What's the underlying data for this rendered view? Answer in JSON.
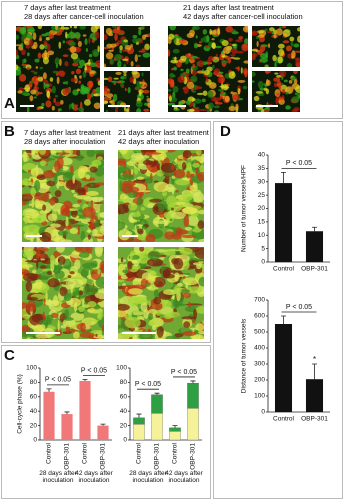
{
  "panels": {
    "A": {
      "label": "A",
      "left_line1": "7 days after last treatment",
      "left_line2": "28 days after cancer-cell inoculation",
      "right_line1": "21 days after last treatment",
      "right_line2": "42 days after cancer-cell inoculation"
    },
    "B": {
      "label": "B",
      "left_line1": "7 days after last treatment",
      "left_line2": "28 days after inoculation",
      "right_line1": "21 days after last treatment",
      "right_line2": "42 days after inoculation"
    },
    "C": {
      "label": "C"
    },
    "D": {
      "label": "D"
    }
  },
  "chart_data": [
    {
      "type": "bar",
      "ylabel": "Cell-cycle phase (%)",
      "categories": [
        "Control",
        "OBP-301",
        "Control",
        "OBP-301"
      ],
      "groups": [
        "28 days after inoculation",
        "42 days after inoculation"
      ],
      "values": [
        67,
        36,
        82,
        20
      ],
      "errors": [
        4,
        3,
        2,
        2
      ],
      "color": "#f07878",
      "ylim": [
        0,
        100
      ],
      "yticks": [
        0,
        20,
        40,
        60,
        80,
        100
      ],
      "annotations": [
        "P < 0.05",
        "P < 0.05"
      ]
    },
    {
      "type": "stacked_bar",
      "categories": [
        "Control",
        "OBP-301",
        "Control",
        "OBP-301"
      ],
      "groups": [
        "28 days after inoculation",
        "42 days after inoculation"
      ],
      "series": [
        {
          "color": "#f6f29a",
          "values": [
            22,
            37,
            12,
            44
          ]
        },
        {
          "color": "#2ea043",
          "values": [
            9,
            26,
            5,
            35
          ],
          "errors": [
            5,
            2,
            3,
            3
          ]
        }
      ],
      "ylim": [
        0,
        100
      ],
      "yticks": [
        0,
        20,
        40,
        60,
        80,
        100
      ],
      "annotations": [
        "P < 0.05",
        "P < 0.05"
      ]
    },
    {
      "type": "bar",
      "ylabel": "Number of tumor vessels/HPF",
      "categories": [
        "Control",
        "OBP-301"
      ],
      "values": [
        29.5,
        11.5
      ],
      "errors": [
        4,
        1.5
      ],
      "color": "#111111",
      "ylim": [
        0,
        40
      ],
      "yticks": [
        0,
        5,
        10,
        15,
        20,
        25,
        30,
        35,
        40
      ],
      "annotations": [
        "P < 0.05"
      ]
    },
    {
      "type": "bar",
      "ylabel": "Distance of tumor vessels",
      "categories": [
        "Control",
        "OBP-301"
      ],
      "values": [
        550,
        205
      ],
      "errors": [
        50,
        95
      ],
      "color": "#111111",
      "ylim": [
        0,
        700
      ],
      "yticks": [
        0,
        100,
        200,
        300,
        400,
        500,
        600,
        700
      ],
      "annotations": [
        "P < 0.05"
      ],
      "asterisk": "*"
    }
  ]
}
